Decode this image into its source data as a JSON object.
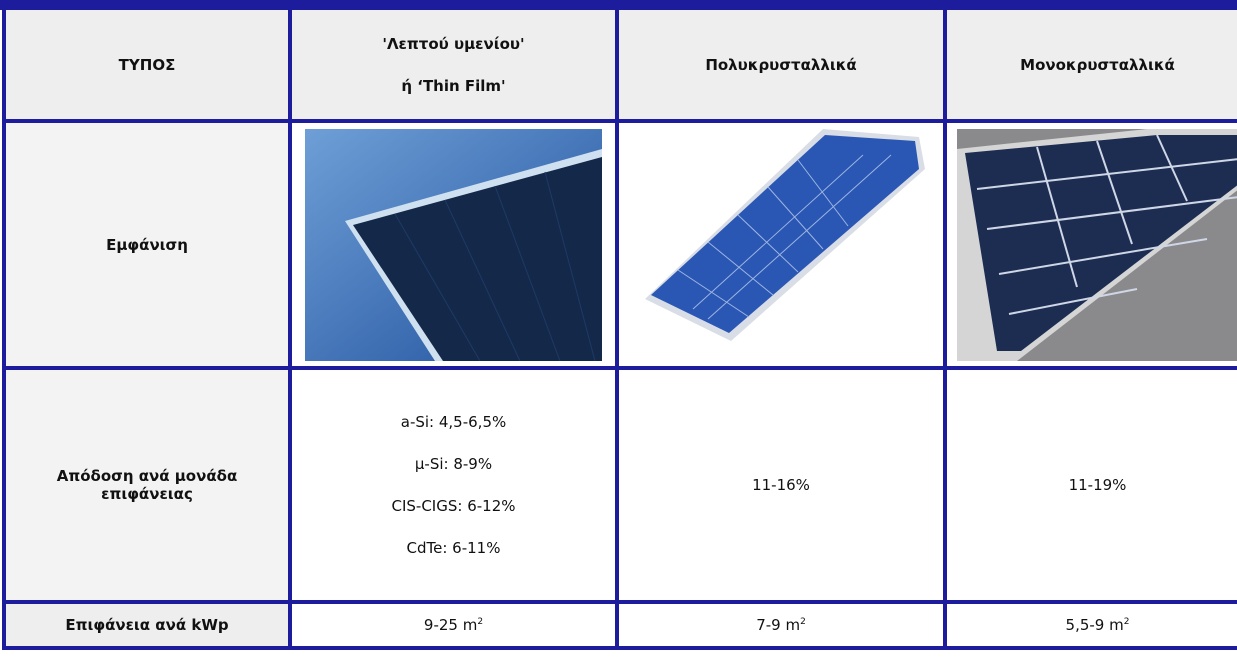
{
  "table": {
    "header": [
      "ΤΥΠΟΣ",
      [
        "'Λεπτού υμενίου'",
        "ή ‘Thin Film'"
      ],
      "Πολυκρυσταλλικά",
      "Μονοκρυσταλλικά"
    ],
    "rows": [
      {
        "label": "Εμφάνιση"
      },
      {
        "label": "Απόδοση ανά μονάδα επιφάνειας",
        "cells": [
          [
            "a-Si: 4,5-6,5%",
            "μ-Si: 8-9%",
            "CIS-CIGS: 6-12%",
            "CdTe: 6-11%"
          ],
          "11-16%",
          "11-19%"
        ]
      },
      {
        "label": "Επιφάνεια ανά kWp",
        "cells": [
          {
            "text": "9-25 m",
            "sup": "2"
          },
          {
            "text": "7-9 m",
            "sup": "2"
          },
          {
            "text": "5,5-9 m",
            "sup": "2"
          }
        ]
      }
    ]
  }
}
